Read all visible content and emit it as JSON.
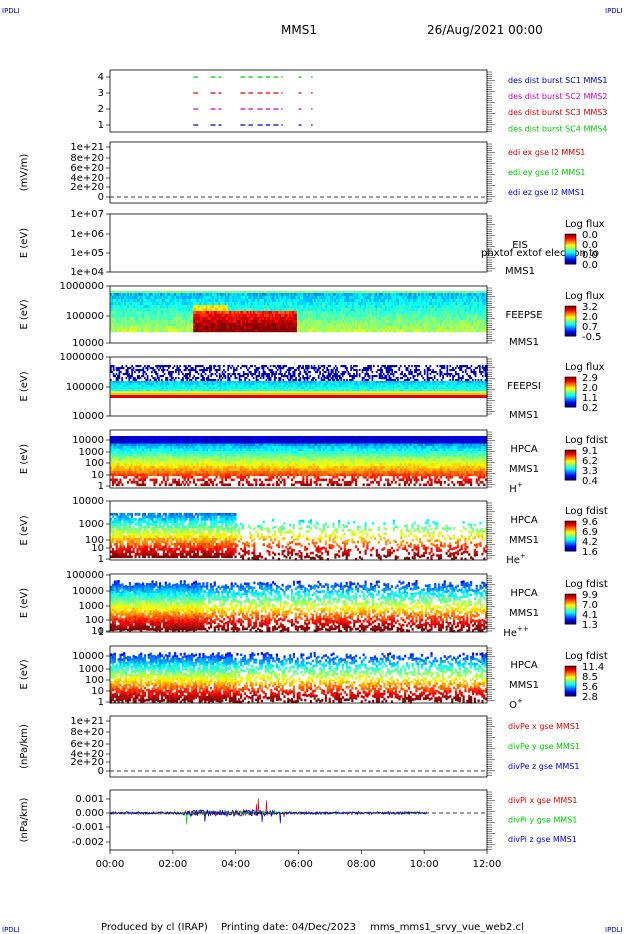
{
  "header": {
    "corner_tl": "IPDLI",
    "corner_tr": "IPDLI",
    "corner_bl": "IPDLI",
    "corner_br": "IPDLI",
    "spacecraft": "MMS1",
    "date": "26/Aug/2021 00:00"
  },
  "footer": {
    "produced_by": "Produced by cl (IRAP)",
    "printing_date": "Printing date: 04/Dec/2023",
    "script_name": "mms_mms1_srvy_vue_web2.cl"
  },
  "colors": {
    "mms1": "#0000cc",
    "mms2": "#cc00cc",
    "mms3": "#dd0000",
    "mms4": "#00cc00",
    "x": "#dd0000",
    "y": "#00cc00",
    "z": "#0000cc"
  },
  "chart_data": {
    "type": "heatmap",
    "x_axis": {
      "ticks": [
        "00:00",
        "02:00",
        "04:00",
        "06:00",
        "08:00",
        "10:00",
        "12:00"
      ],
      "range_hours": [
        0,
        12
      ]
    },
    "panels": [
      {
        "id": "burst",
        "ylim": [
          0.5,
          4.5
        ],
        "ytick_labels": [
          "1",
          "2",
          "3",
          "4"
        ],
        "legend": [
          {
            "text": "des dist burst SC1 MMS1",
            "color": "#0000cc"
          },
          {
            "text": "des dist burst SC2 MMS2",
            "color": "#cc00cc"
          },
          {
            "text": "des dist burst SC3 MMS3",
            "color": "#dd0000"
          },
          {
            "text": "des dist burst SC4 MMS4",
            "color": "#00cc00"
          }
        ],
        "burst_intervals_hours": [
          [
            2.65,
            2.85
          ],
          [
            3.2,
            3.55
          ],
          [
            4.15,
            4.55
          ],
          [
            4.7,
            5.1
          ],
          [
            5.2,
            5.5
          ],
          [
            6.0,
            6.1
          ],
          [
            6.4,
            6.45
          ]
        ]
      },
      {
        "id": "edi",
        "ylabel": "(mV/m)",
        "ytick_labels": [
          "1e+21",
          "8e+20",
          "6e+20",
          "4e+20",
          "2e+20",
          "0"
        ],
        "legend": [
          {
            "text": "edi ex gse l2 MMS1",
            "color": "#dd0000"
          },
          {
            "text": "edi ey gse l2 MMS1",
            "color": "#00cc00"
          },
          {
            "text": "edi ez gse l2 MMS1",
            "color": "#0000cc"
          }
        ]
      },
      {
        "id": "eis",
        "ylabel": "E (eV)",
        "ytick_labels": [
          "1e+07",
          "1e+06",
          "1e+05",
          "1e+04"
        ],
        "instrument": "EIS",
        "overlay_text": "phxtof extof electron to",
        "spacecraft": "MMS1",
        "cbar_title": "Log flux",
        "cbar_labels": [
          "0.0",
          "0.0",
          "0.0",
          "0.0"
        ]
      },
      {
        "id": "feepse",
        "ylabel": "E (eV)",
        "ytick_labels": [
          "1000000",
          "100000",
          "10000"
        ],
        "instrument": "FEEPSE",
        "spacecraft": "MMS1",
        "cbar_title": "Log flux",
        "cbar_labels": [
          "3.2",
          "2.0",
          "0.7",
          "-0.5"
        ]
      },
      {
        "id": "feepsi",
        "ylabel": "E (eV)",
        "ytick_labels": [
          "1000000",
          "100000",
          "10000"
        ],
        "instrument": "FEEPSI",
        "spacecraft": "MMS1",
        "cbar_title": "Log flux",
        "cbar_labels": [
          "2.9",
          "2.0",
          "1.1",
          "0.2"
        ]
      },
      {
        "id": "hpca_h",
        "ylabel": "E (eV)",
        "ytick_labels": [
          "10000",
          "1000",
          "100",
          "10",
          "1"
        ],
        "instrument": "HPCA",
        "spacecraft": "MMS1",
        "species": "H",
        "species_sup": "+",
        "cbar_title": "Log fdist",
        "cbar_labels": [
          "9.1",
          "6.2",
          "3.3",
          "0.4"
        ]
      },
      {
        "id": "hpca_he",
        "ylabel": "E (eV)",
        "ytick_labels": [
          "10000",
          "1000",
          "100",
          "10",
          "1"
        ],
        "instrument": "HPCA",
        "spacecraft": "MMS1",
        "species": "He",
        "species_sup": "+",
        "cbar_title": "Log fdist",
        "cbar_labels": [
          "9.6",
          "6.9",
          "4.2",
          "1.6"
        ]
      },
      {
        "id": "hpca_he2",
        "ylabel": "E (eV)",
        "ytick_labels": [
          "100000",
          "10000",
          "1000",
          "100",
          "10",
          "1"
        ],
        "instrument": "HPCA",
        "spacecraft": "MMS1",
        "species": "He",
        "species_sup": "++",
        "cbar_title": "Log fdist",
        "cbar_labels": [
          "9.9",
          "7.0",
          "4.1",
          "1.3"
        ]
      },
      {
        "id": "hpca_o",
        "ylabel": "E (eV)",
        "ytick_labels": [
          "10000",
          "1000",
          "100",
          "10",
          "1"
        ],
        "instrument": "HPCA",
        "spacecraft": "MMS1",
        "species": "O",
        "species_sup": "+",
        "cbar_title": "Log fdist",
        "cbar_labels": [
          "11.4",
          "8.5",
          "5.6",
          "2.8"
        ]
      },
      {
        "id": "divpe",
        "ylabel": "(nPa/km)",
        "ytick_labels": [
          "1e+21",
          "8e+20",
          "6e+20",
          "4e+20",
          "2e+20",
          "0"
        ],
        "legend": [
          {
            "text": "divPe x gse MMS1",
            "color": "#dd0000"
          },
          {
            "text": "divPe y gse MMS1",
            "color": "#00cc00"
          },
          {
            "text": "divPe z gse MMS1",
            "color": "#0000cc"
          }
        ]
      },
      {
        "id": "divpi",
        "ylabel": "(nPa/km)",
        "ytick_labels": [
          "0.001",
          "0.000",
          "-0.001",
          "-0.002"
        ],
        "ylim": [
          -0.0025,
          0.0014
        ],
        "legend": [
          {
            "text": "divPi x gse MMS1",
            "color": "#dd0000"
          },
          {
            "text": "divPi y gse MMS1",
            "color": "#00cc00"
          },
          {
            "text": "divPi z gse MMS1",
            "color": "#0000cc"
          }
        ]
      }
    ]
  }
}
